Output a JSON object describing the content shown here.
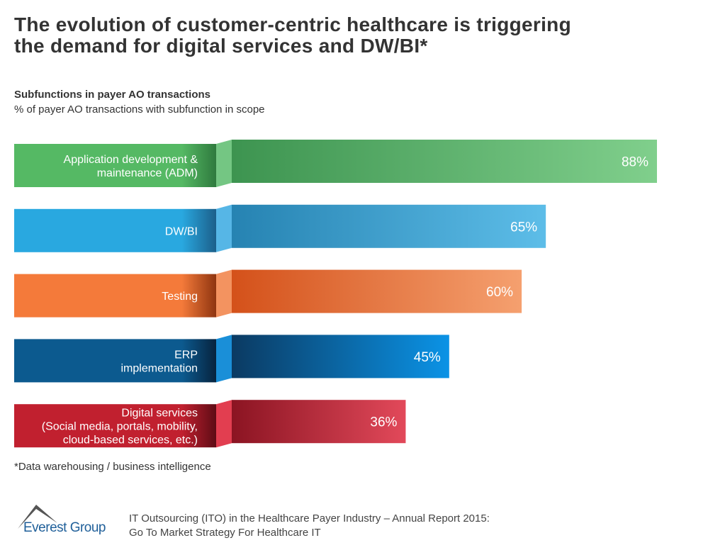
{
  "title_line1": "The evolution of customer-centric healthcare is triggering",
  "title_line2": "the demand for digital services and DW/BI*",
  "chart_data": {
    "type": "bar",
    "orientation": "horizontal",
    "title": "Subfunctions in payer AO transactions",
    "subtitle": "% of payer AO transactions with subfunction in scope",
    "categories": [
      [
        "Application development &",
        "maintenance (ADM)"
      ],
      [
        "DW/BI"
      ],
      [
        "Testing"
      ],
      [
        "ERP",
        "implementation"
      ],
      [
        "Digital services",
        "(Social media, portals, mobility,",
        "cloud-based services, etc.)"
      ]
    ],
    "values": [
      88,
      65,
      60,
      45,
      36
    ],
    "data_labels": [
      "88%",
      "65%",
      "60%",
      "45%",
      "36%"
    ],
    "unit": "%",
    "xlim": [
      0,
      100
    ],
    "grid": false,
    "colors": [
      {
        "label": "#55b964",
        "dark": "#3d9450",
        "light": "#80cf8c",
        "fold": "#2f7a3e",
        "foldlight": "#74c683"
      },
      {
        "label": "#29a8e0",
        "dark": "#2683b2",
        "light": "#5dbde8",
        "fold": "#1c5f8a",
        "foldlight": "#56b6e6"
      },
      {
        "label": "#f47a3a",
        "dark": "#d4511a",
        "light": "#f5a06f",
        "fold": "#8f3510",
        "foldlight": "#f39360"
      },
      {
        "label": "#0c5a8f",
        "dark": "#0b3a62",
        "light": "#0b93e6",
        "fold": "#07233e",
        "foldlight": "#1a8fd8"
      },
      {
        "label": "#c1202f",
        "dark": "#8b1422",
        "light": "#e2495a",
        "fold": "#5e0c15",
        "foldlight": "#e23e50"
      }
    ]
  },
  "footnote": "*Data warehousing / business intelligence",
  "logo_text": "Everest Group",
  "source_line1": "IT Outsourcing (ITO) in the Healthcare Payer Industry – Annual Report 2015:",
  "source_line2": "Go To Market Strategy For Healthcare IT"
}
